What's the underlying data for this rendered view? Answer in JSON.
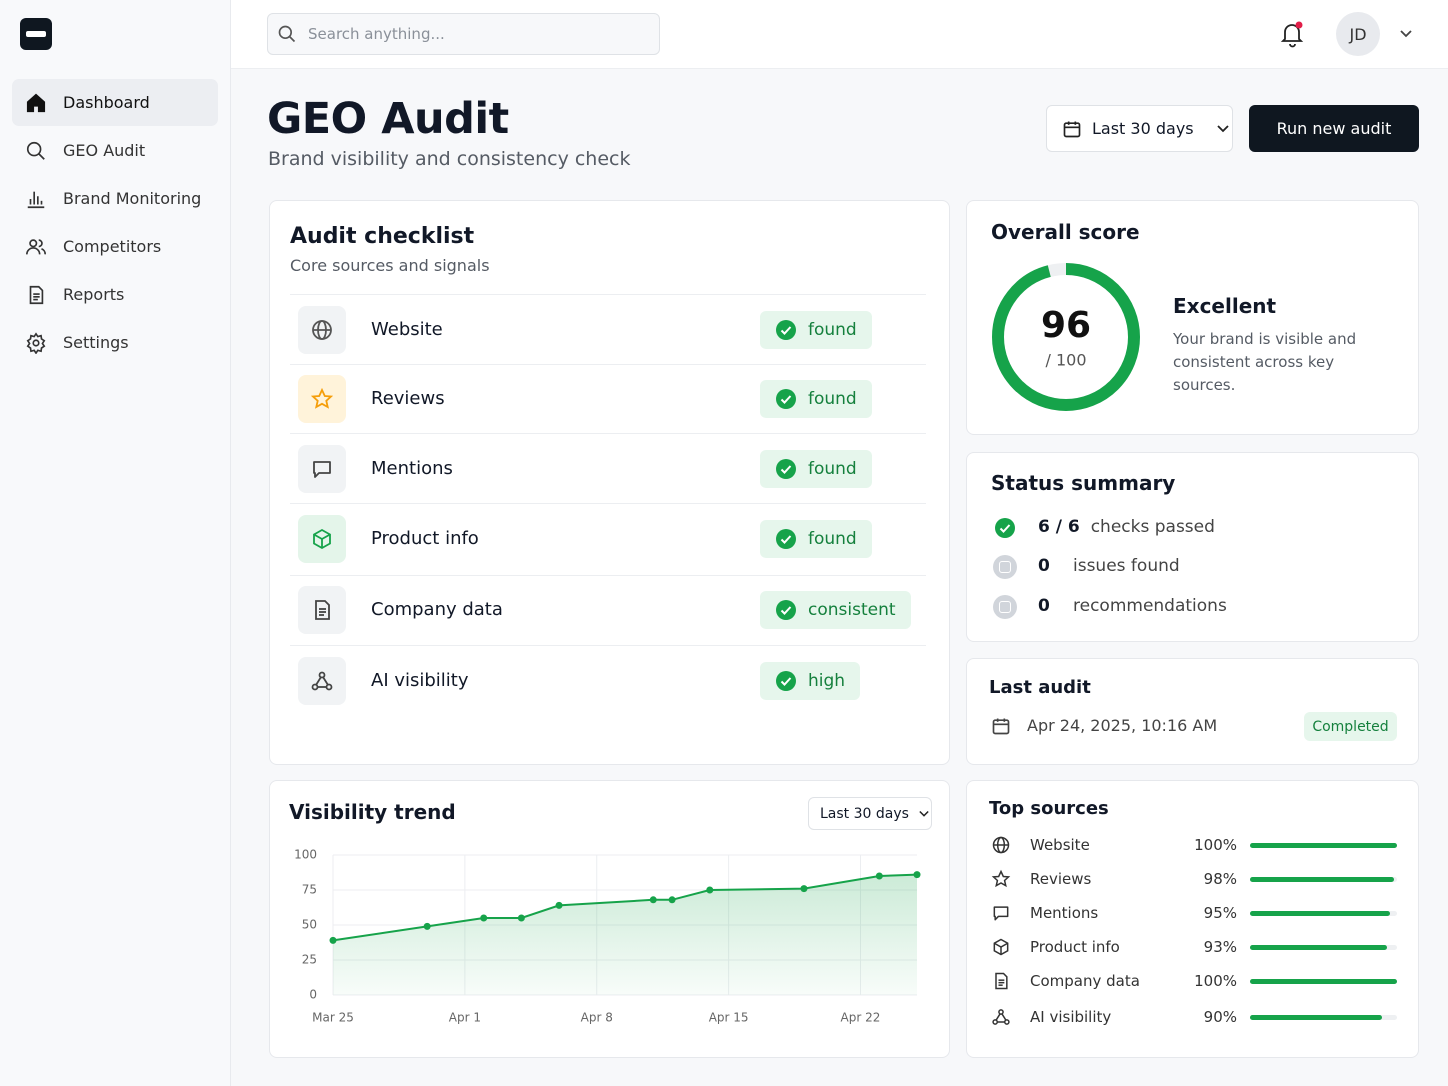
{
  "sidebar": {
    "nav": [
      "Dashboard",
      "GEO Audit",
      "Brand Monitoring",
      "Competitors",
      "Reports",
      "Settings"
    ]
  },
  "header": {
    "search_placeholder": "Search anything...",
    "avatar": "JD"
  },
  "page": {
    "title": "GEO Audit",
    "subtitle": "Brand visibility and consistency check",
    "date_range": "Last 30 days",
    "action": "Run new audit"
  },
  "checklist": {
    "title": "Audit checklist",
    "subtitle": "Core sources and signals",
    "items": [
      {
        "label": "Website",
        "status": "found"
      },
      {
        "label": "Reviews",
        "status": "found"
      },
      {
        "label": "Mentions",
        "status": "found"
      },
      {
        "label": "Product info",
        "status": "found"
      },
      {
        "label": "Company data",
        "status": "consistent"
      },
      {
        "label": "AI visibility",
        "status": "high"
      }
    ]
  },
  "score": {
    "title": "Overall score",
    "value": 96,
    "max": 100,
    "max_label": "/ 100",
    "rating": "Excellent",
    "description": "Your brand is visible and consistent across key sources."
  },
  "status_summary": {
    "title": "Status summary",
    "items": [
      {
        "count": "6 / 6",
        "label": "checks passed"
      },
      {
        "count": 0,
        "label": "issues found"
      },
      {
        "count": 0,
        "label": "recommendations"
      }
    ]
  },
  "last_audit": {
    "title": "Last audit",
    "date": "Apr 24, 2025, 10:16 AM",
    "status": "Completed"
  },
  "chart_data": {
    "type": "line",
    "title": "Visibility trend",
    "range": "Last 30 days",
    "x": [
      0,
      5,
      8,
      10,
      12,
      17,
      18,
      20,
      25,
      29,
      31
    ],
    "values": [
      39,
      49,
      55,
      55,
      64,
      68,
      68,
      75,
      76,
      85,
      86
    ],
    "xlim": [
      0,
      31
    ],
    "ylim": [
      0,
      100
    ],
    "xticks": [
      {
        "value": 0,
        "label": "Mar 25"
      },
      {
        "value": 7,
        "label": "Apr 1"
      },
      {
        "value": 14,
        "label": "Apr 8"
      },
      {
        "value": 21,
        "label": "Apr 15"
      },
      {
        "value": 28,
        "label": "Apr 22"
      }
    ],
    "yticks": [
      0,
      25,
      50,
      75,
      100
    ],
    "color": "#16a34a",
    "grid": true
  },
  "top_sources": {
    "title": "Top sources",
    "items": [
      {
        "name": "Website",
        "value": 100,
        "value_label": "100%"
      },
      {
        "name": "Reviews",
        "value": 98,
        "value_label": "98%"
      },
      {
        "name": "Mentions",
        "value": 95,
        "value_label": "95%"
      },
      {
        "name": "Product info",
        "value": 93,
        "value_label": "93%"
      },
      {
        "name": "Company data",
        "value": 100,
        "value_label": "100%"
      },
      {
        "name": "AI visibility",
        "value": 90,
        "value_label": "90%"
      }
    ]
  }
}
